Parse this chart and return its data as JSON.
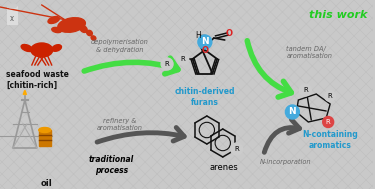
{
  "bg_color": "#c9c9c9",
  "bg_line_color": "#bbbbbb",
  "title": "this work",
  "title_color": "#22cc22",
  "seafood_label": "seafood waste\n[chitin-rich]",
  "oil_label": "oil",
  "top_arrow_label": "depolymerisation\n& dehydration",
  "right_arrow_label": "tandem DA/\naromatisation",
  "bottom_arrow_label": "N-incorporation",
  "left_bottom_arrow_label": "refinery &\naromatisation",
  "furan_label": "chitin-derived\nfurans",
  "furan_label_color": "#2299cc",
  "arenes_label": "arenes",
  "traditional_label": "traditional\nprocess",
  "n_containing_label": "N-containing\naromatics",
  "n_containing_label_color": "#2299cc",
  "green_arrow_color": "#44dd44",
  "dark_arrow_color": "#555555",
  "circle_N_color": "#44aadd",
  "circle_R_gray": "#cccccc",
  "circle_R_red": "#dd4444",
  "O_color": "#dd2222",
  "bond_color": "#111111",
  "label_gray": "#666666",
  "seafood_label_color": "#111111",
  "oil_tower_color": "#888888",
  "barrel_color": "#cc8800"
}
